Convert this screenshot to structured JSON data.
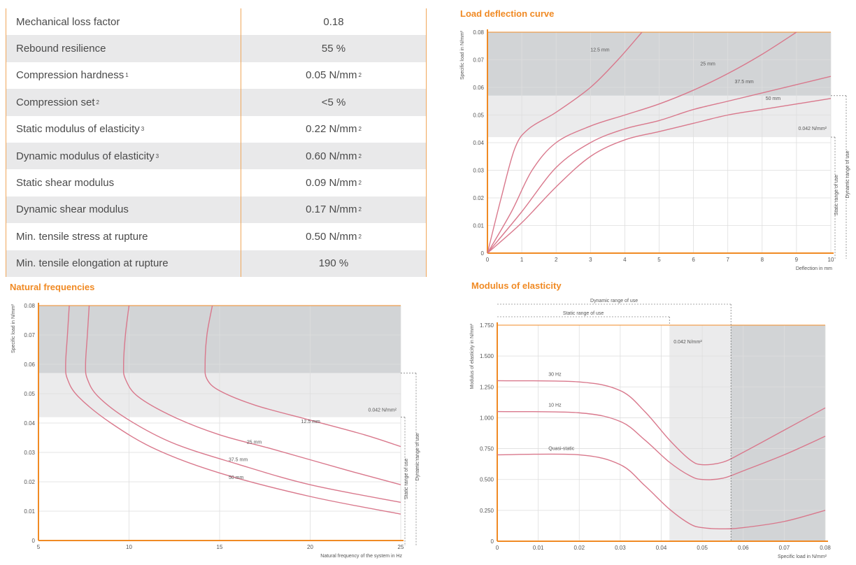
{
  "properties": [
    {
      "name": "Mechanical loss factor",
      "sup": "",
      "value": "0.18",
      "unit_sup": ""
    },
    {
      "name": "Rebound resilience",
      "sup": "",
      "value": "55 %",
      "unit_sup": ""
    },
    {
      "name": "Compression hardness",
      "sup": "1",
      "value": "0.05 N/mm",
      "unit_sup": "2"
    },
    {
      "name": "Compression set",
      "sup": "2",
      "value": "<5 %",
      "unit_sup": ""
    },
    {
      "name": "Static modulus of elasticity",
      "sup": "3",
      "value": "0.22 N/mm",
      "unit_sup": "2"
    },
    {
      "name": "Dynamic modulus of elasticity",
      "sup": "3",
      "value": "0.60 N/mm",
      "unit_sup": "2"
    },
    {
      "name": "Static shear modulus",
      "sup": "",
      "value": "0.09 N/mm",
      "unit_sup": "2"
    },
    {
      "name": "Dynamic shear modulus",
      "sup": "",
      "value": "0.17 N/mm",
      "unit_sup": "2"
    },
    {
      "name": "Min. tensile stress at rupture",
      "sup": "",
      "value": "0.50 N/mm",
      "unit_sup": "2"
    },
    {
      "name": "Min. tensile elongation at rupture",
      "sup": "",
      "value": "190 %",
      "unit_sup": ""
    }
  ],
  "colors": {
    "accent": "#f08a24",
    "curve": "#d9788c",
    "band_dark": "#d2d4d6",
    "band_light": "#ebebec",
    "grid": "#dedede"
  },
  "chart_data": [
    {
      "id": "load_deflection",
      "type": "line",
      "title": "Load deflection curve",
      "xlabel": "Deflection in mm",
      "ylabel": "Specific load in N/mm²",
      "xlim": [
        0,
        10
      ],
      "ylim": [
        0,
        0.08
      ],
      "xticks": [
        "0",
        "1",
        "2",
        "3",
        "4",
        "5",
        "6",
        "7",
        "8",
        "9",
        "10"
      ],
      "yticks": [
        "0",
        "0.01",
        "0.02",
        "0.03",
        "0.04",
        "0.05",
        "0.06",
        "0.07",
        "0.08"
      ],
      "static_limit": 0.042,
      "dynamic_limit": 0.057,
      "limit_label": "0.042 N/mm²",
      "range_labels": [
        "Static range of use",
        "Dynamic range of use"
      ],
      "series": [
        {
          "name": "12.5 mm",
          "points": [
            [
              0,
              0
            ],
            [
              0.4,
              0.02
            ],
            [
              0.8,
              0.038
            ],
            [
              1.2,
              0.045
            ],
            [
              2,
              0.051
            ],
            [
              3,
              0.06
            ],
            [
              3.8,
              0.07
            ],
            [
              4.5,
              0.08
            ]
          ],
          "label_at": [
            3.0,
            0.073
          ]
        },
        {
          "name": "25 mm",
          "points": [
            [
              0,
              0
            ],
            [
              0.7,
              0.015
            ],
            [
              1.3,
              0.03
            ],
            [
              2,
              0.04
            ],
            [
              3,
              0.046
            ],
            [
              4,
              0.05
            ],
            [
              5,
              0.054
            ],
            [
              6,
              0.059
            ],
            [
              7,
              0.065
            ],
            [
              8,
              0.072
            ],
            [
              9,
              0.08
            ]
          ],
          "label_at": [
            6.2,
            0.068
          ]
        },
        {
          "name": "37.5 mm",
          "points": [
            [
              0,
              0
            ],
            [
              1,
              0.015
            ],
            [
              2,
              0.031
            ],
            [
              3,
              0.04
            ],
            [
              4,
              0.045
            ],
            [
              5,
              0.048
            ],
            [
              6,
              0.052
            ],
            [
              7,
              0.055
            ],
            [
              8,
              0.058
            ],
            [
              9,
              0.061
            ],
            [
              10,
              0.064
            ]
          ],
          "label_at": [
            7.2,
            0.0615
          ]
        },
        {
          "name": "50 mm",
          "points": [
            [
              0,
              0
            ],
            [
              1,
              0.011
            ],
            [
              2,
              0.024
            ],
            [
              3,
              0.035
            ],
            [
              4,
              0.041
            ],
            [
              5,
              0.044
            ],
            [
              6,
              0.047
            ],
            [
              7,
              0.05
            ],
            [
              8,
              0.052
            ],
            [
              9,
              0.054
            ],
            [
              10,
              0.056
            ]
          ],
          "label_at": [
            8.1,
            0.0555
          ]
        }
      ]
    },
    {
      "id": "natural_frequencies",
      "type": "line",
      "title": "Natural frequencies",
      "xlabel": "Natural frequency of the system in Hz",
      "ylabel": "Specific load in N/mm²",
      "xlim": [
        5,
        25
      ],
      "ylim": [
        0,
        0.08
      ],
      "xticks": [
        "5",
        "10",
        "15",
        "20",
        "25"
      ],
      "yticks": [
        "0",
        "0.01",
        "0.02",
        "0.03",
        "0.04",
        "0.05",
        "0.06",
        "0.07",
        "0.08"
      ],
      "static_limit": 0.042,
      "dynamic_limit": 0.057,
      "limit_label": "0.042 N/mm²",
      "range_labels": [
        "Static range of use",
        "Dynamic range of use"
      ],
      "series": [
        {
          "name": "12.5 mm",
          "points": [
            [
              14.6,
              0.08
            ],
            [
              14.3,
              0.07
            ],
            [
              14.2,
              0.06
            ],
            [
              14.3,
              0.055
            ],
            [
              15,
              0.051
            ],
            [
              17,
              0.046
            ],
            [
              20,
              0.041
            ],
            [
              23,
              0.036
            ],
            [
              25,
              0.032
            ]
          ],
          "label_at": [
            19.5,
            0.04
          ]
        },
        {
          "name": "25 mm",
          "points": [
            [
              10,
              0.08
            ],
            [
              9.8,
              0.07
            ],
            [
              9.7,
              0.06
            ],
            [
              9.8,
              0.055
            ],
            [
              10.5,
              0.049
            ],
            [
              12.5,
              0.042
            ],
            [
              15,
              0.036
            ],
            [
              18,
              0.031
            ],
            [
              22,
              0.024
            ],
            [
              25,
              0.019
            ]
          ],
          "label_at": [
            16.5,
            0.033
          ]
        },
        {
          "name": "37.5 mm",
          "points": [
            [
              7.8,
              0.08
            ],
            [
              7.7,
              0.07
            ],
            [
              7.6,
              0.06
            ],
            [
              7.7,
              0.055
            ],
            [
              8.3,
              0.049
            ],
            [
              10,
              0.041
            ],
            [
              12.5,
              0.033
            ],
            [
              16,
              0.026
            ],
            [
              20,
              0.019
            ],
            [
              25,
              0.013
            ]
          ],
          "label_at": [
            15.5,
            0.027
          ]
        },
        {
          "name": "50 mm",
          "points": [
            [
              6.7,
              0.08
            ],
            [
              6.6,
              0.07
            ],
            [
              6.5,
              0.06
            ],
            [
              6.6,
              0.055
            ],
            [
              7.2,
              0.049
            ],
            [
              9,
              0.04
            ],
            [
              11.5,
              0.031
            ],
            [
              15,
              0.023
            ],
            [
              20,
              0.015
            ],
            [
              25,
              0.009
            ]
          ],
          "label_at": [
            15.5,
            0.021
          ]
        }
      ]
    },
    {
      "id": "modulus_elasticity",
      "type": "line",
      "title": "Modulus of elasticity",
      "xlabel": "Specific load in N/mm²",
      "ylabel": "Modulus of elasticity in N/mm²",
      "xlim": [
        0,
        0.08
      ],
      "ylim": [
        0,
        1.75
      ],
      "xticks": [
        "0",
        "0.01",
        "0.02",
        "0.03",
        "0.04",
        "0.05",
        "0.06",
        "0.07",
        "0.08"
      ],
      "yticks": [
        "0",
        "0.250",
        "0.500",
        "0.750",
        "1.000",
        "1.250",
        "1.500",
        "1.750"
      ],
      "static_limit": 0.042,
      "dynamic_limit": 0.057,
      "limit_label": "0.042 N/mm²",
      "range_labels": [
        "Static range of use",
        "Dynamic range of use"
      ],
      "series": [
        {
          "name": "30 Hz",
          "points": [
            [
              0,
              1.3
            ],
            [
              0.02,
              1.29
            ],
            [
              0.03,
              1.22
            ],
            [
              0.036,
              1.05
            ],
            [
              0.042,
              0.82
            ],
            [
              0.047,
              0.66
            ],
            [
              0.05,
              0.62
            ],
            [
              0.055,
              0.64
            ],
            [
              0.06,
              0.72
            ],
            [
              0.07,
              0.9
            ],
            [
              0.08,
              1.08
            ]
          ],
          "label_at": [
            0.0125,
            1.34
          ]
        },
        {
          "name": "10 Hz",
          "points": [
            [
              0,
              1.05
            ],
            [
              0.02,
              1.04
            ],
            [
              0.03,
              0.97
            ],
            [
              0.036,
              0.82
            ],
            [
              0.042,
              0.64
            ],
            [
              0.047,
              0.53
            ],
            [
              0.05,
              0.5
            ],
            [
              0.055,
              0.51
            ],
            [
              0.06,
              0.57
            ],
            [
              0.07,
              0.7
            ],
            [
              0.08,
              0.85
            ]
          ],
          "label_at": [
            0.0125,
            1.09
          ]
        },
        {
          "name": "Quasi-static",
          "points": [
            [
              0,
              0.7
            ],
            [
              0.02,
              0.7
            ],
            [
              0.03,
              0.62
            ],
            [
              0.036,
              0.45
            ],
            [
              0.042,
              0.26
            ],
            [
              0.047,
              0.14
            ],
            [
              0.05,
              0.11
            ],
            [
              0.055,
              0.1
            ],
            [
              0.06,
              0.11
            ],
            [
              0.07,
              0.16
            ],
            [
              0.08,
              0.25
            ]
          ],
          "label_at": [
            0.0125,
            0.74
          ]
        }
      ]
    }
  ]
}
